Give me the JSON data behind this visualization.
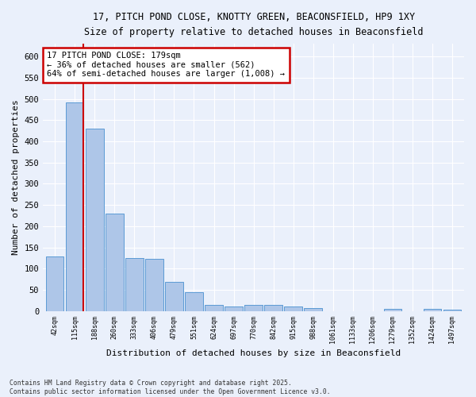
{
  "title_line1": "17, PITCH POND CLOSE, KNOTTY GREEN, BEACONSFIELD, HP9 1XY",
  "title_line2": "Size of property relative to detached houses in Beaconsfield",
  "xlabel": "Distribution of detached houses by size in Beaconsfield",
  "ylabel": "Number of detached properties",
  "categories": [
    "42sqm",
    "115sqm",
    "188sqm",
    "260sqm",
    "333sqm",
    "406sqm",
    "479sqm",
    "551sqm",
    "624sqm",
    "697sqm",
    "770sqm",
    "842sqm",
    "915sqm",
    "988sqm",
    "1061sqm",
    "1133sqm",
    "1206sqm",
    "1279sqm",
    "1352sqm",
    "1424sqm",
    "1497sqm"
  ],
  "values": [
    128,
    492,
    430,
    229,
    125,
    123,
    68,
    45,
    15,
    11,
    15,
    15,
    11,
    8,
    0,
    0,
    0,
    5,
    0,
    6,
    4
  ],
  "bar_color": "#aec6e8",
  "bar_edge_color": "#5b9bd5",
  "background_color": "#eaf0fb",
  "grid_color": "#ffffff",
  "annotation_text": "17 PITCH POND CLOSE: 179sqm\n← 36% of detached houses are smaller (562)\n64% of semi-detached houses are larger (1,008) →",
  "annotation_box_color": "#ffffff",
  "annotation_box_edge": "#cc0000",
  "vline_color": "#cc0000",
  "footer_line1": "Contains HM Land Registry data © Crown copyright and database right 2025.",
  "footer_line2": "Contains public sector information licensed under the Open Government Licence v3.0.",
  "ylim": [
    0,
    630
  ],
  "yticks": [
    0,
    50,
    100,
    150,
    200,
    250,
    300,
    350,
    400,
    450,
    500,
    550,
    600
  ]
}
